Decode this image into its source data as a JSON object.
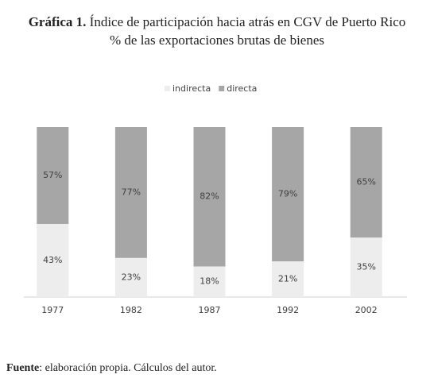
{
  "chart_data": {
    "type": "stacked_bar",
    "figure_label": "Gráfica 1.",
    "title": "Índice de participación hacia atrás en CGV de Puerto Rico",
    "subtitle": "% de las exportaciones brutas de bienes",
    "categories": [
      "1977",
      "1982",
      "1987",
      "1992",
      "2002"
    ],
    "series": [
      {
        "name": "indirecta",
        "color": "#ededed",
        "values": [
          43,
          23,
          18,
          21,
          35
        ],
        "value_labels": [
          "43%",
          "23%",
          "18%",
          "21%",
          "35%"
        ]
      },
      {
        "name": "directa",
        "color": "#a6a6a6",
        "values": [
          57,
          77,
          82,
          79,
          65
        ],
        "value_labels": [
          "57%",
          "77%",
          "82%",
          "79%",
          "65%"
        ]
      }
    ],
    "ylim": [
      0,
      100
    ],
    "legend": "top",
    "source_label": "Fuente",
    "source_text": ": elaboración propia. Cálculos del autor."
  }
}
